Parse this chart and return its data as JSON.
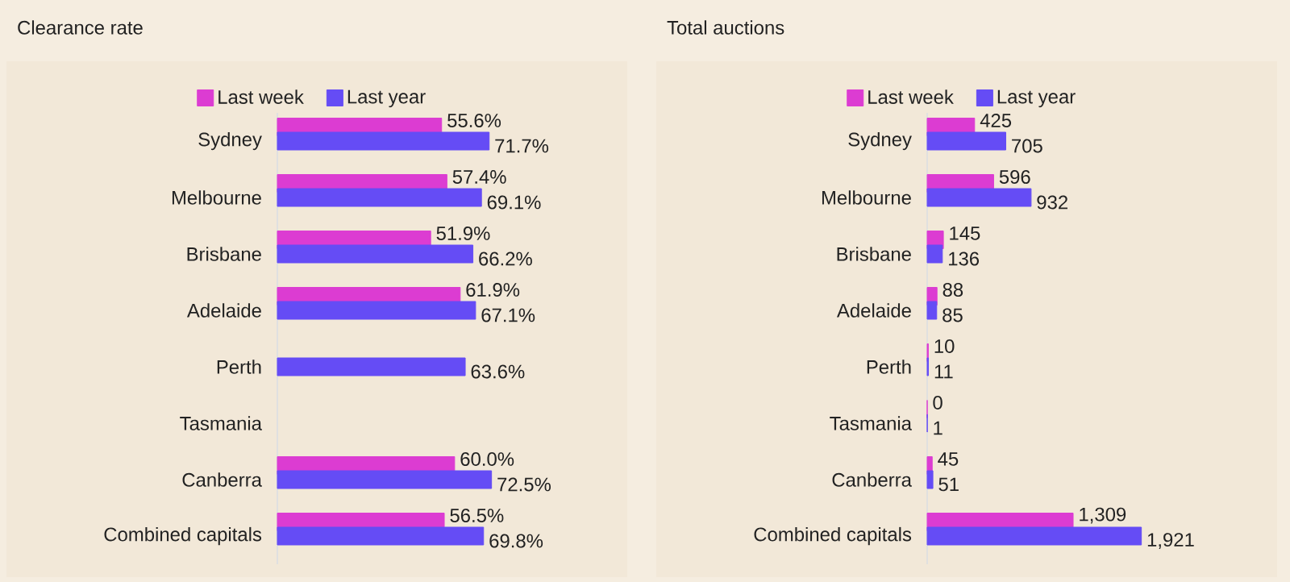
{
  "chart_data": [
    {
      "type": "bar",
      "orientation": "horizontal",
      "title": "Clearance rate",
      "legend": "top",
      "categories": [
        "Sydney",
        "Melbourne",
        "Brisbane",
        "Adelaide",
        "Perth",
        "Tasmania",
        "Canberra",
        "Combined capitals"
      ],
      "series": [
        {
          "name": "Last week",
          "color": "#dc3cd2",
          "values": [
            55.6,
            57.4,
            51.9,
            61.9,
            null,
            null,
            60.0,
            56.5
          ],
          "value_labels": [
            "55.6%",
            "57.4%",
            "51.9%",
            "61.9%",
            null,
            null,
            "60.0%",
            "56.5%"
          ]
        },
        {
          "name": "Last year",
          "color": "#654cf5",
          "values": [
            71.7,
            69.1,
            66.2,
            67.1,
            63.6,
            null,
            72.5,
            69.8
          ],
          "value_labels": [
            "71.7%",
            "69.1%",
            "66.2%",
            "67.1%",
            "63.6%",
            null,
            "72.5%",
            "69.8%"
          ]
        }
      ]
    },
    {
      "type": "bar",
      "orientation": "horizontal",
      "title": "Total auctions",
      "legend": "top",
      "categories": [
        "Sydney",
        "Melbourne",
        "Brisbane",
        "Adelaide",
        "Perth",
        "Tasmania",
        "Canberra",
        "Combined capitals"
      ],
      "series": [
        {
          "name": "Last week",
          "color": "#dc3cd2",
          "values": [
            425,
            596,
            145,
            88,
            10,
            0,
            45,
            1309
          ],
          "value_labels": [
            "425",
            "596",
            "145",
            "88",
            "10",
            "0",
            "45",
            "1,309"
          ]
        },
        {
          "name": "Last year",
          "color": "#654cf5",
          "values": [
            705,
            932,
            136,
            85,
            11,
            1,
            51,
            1921
          ],
          "value_labels": [
            "705",
            "932",
            "136",
            "85",
            "11",
            "1",
            "51",
            "1,921"
          ]
        }
      ]
    }
  ]
}
